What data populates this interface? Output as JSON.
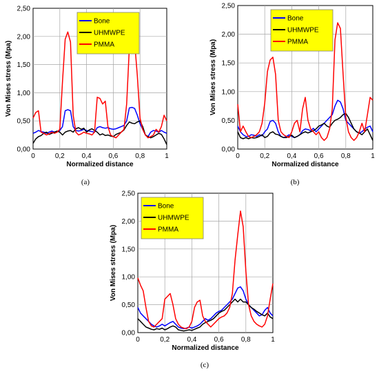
{
  "chart_data": [
    {
      "type": "line",
      "caption": "(a)",
      "xlabel": "Normalized distance",
      "ylabel": "Von Mises stress (Mpa)",
      "xlim": [
        0,
        1
      ],
      "ylim": [
        0,
        2.5
      ],
      "xticks": [
        0,
        0.2,
        0.4,
        0.6,
        0.8,
        1
      ],
      "xtick_labels": [
        "0",
        "0,2",
        "0,4",
        "0,6",
        "0,8",
        "1"
      ],
      "yticks": [
        0,
        0.5,
        1,
        1.5,
        2,
        2.5
      ],
      "ytick_labels": [
        "0,00",
        "0,50",
        "1,00",
        "1,50",
        "2,00",
        "2,50"
      ],
      "grid": true,
      "legend_position": "top-center",
      "series": [
        {
          "name": "Bone",
          "color": "#0000ff",
          "x": [
            0,
            0.02,
            0.04,
            0.06,
            0.08,
            0.1,
            0.12,
            0.14,
            0.16,
            0.18,
            0.2,
            0.22,
            0.24,
            0.26,
            0.28,
            0.3,
            0.32,
            0.34,
            0.36,
            0.38,
            0.4,
            0.42,
            0.44,
            0.46,
            0.48,
            0.5,
            0.52,
            0.54,
            0.56,
            0.58,
            0.6,
            0.62,
            0.64,
            0.66,
            0.68,
            0.7,
            0.72,
            0.74,
            0.76,
            0.78,
            0.8,
            0.82,
            0.84,
            0.86,
            0.88,
            0.9,
            0.92,
            0.94,
            0.96,
            0.98,
            1
          ],
          "y": [
            0.28,
            0.3,
            0.33,
            0.31,
            0.3,
            0.28,
            0.3,
            0.32,
            0.3,
            0.31,
            0.33,
            0.4,
            0.68,
            0.7,
            0.68,
            0.4,
            0.33,
            0.32,
            0.33,
            0.35,
            0.33,
            0.32,
            0.31,
            0.3,
            0.38,
            0.4,
            0.38,
            0.37,
            0.38,
            0.36,
            0.35,
            0.36,
            0.38,
            0.4,
            0.42,
            0.5,
            0.73,
            0.74,
            0.72,
            0.6,
            0.45,
            0.35,
            0.25,
            0.22,
            0.3,
            0.33,
            0.32,
            0.3,
            0.33,
            0.3,
            0.28
          ]
        },
        {
          "name": "UHMWPE",
          "color": "#000000",
          "x": [
            0,
            0.02,
            0.04,
            0.06,
            0.08,
            0.1,
            0.12,
            0.14,
            0.16,
            0.18,
            0.2,
            0.22,
            0.24,
            0.26,
            0.28,
            0.3,
            0.32,
            0.34,
            0.36,
            0.38,
            0.4,
            0.42,
            0.44,
            0.46,
            0.48,
            0.5,
            0.52,
            0.54,
            0.56,
            0.58,
            0.6,
            0.62,
            0.64,
            0.66,
            0.68,
            0.7,
            0.72,
            0.74,
            0.76,
            0.78,
            0.8,
            0.82,
            0.84,
            0.86,
            0.88,
            0.9,
            0.92,
            0.94,
            0.96,
            0.98,
            1
          ],
          "y": [
            0.1,
            0.18,
            0.22,
            0.24,
            0.28,
            0.3,
            0.26,
            0.28,
            0.3,
            0.32,
            0.3,
            0.25,
            0.3,
            0.32,
            0.33,
            0.3,
            0.36,
            0.38,
            0.35,
            0.37,
            0.3,
            0.34,
            0.36,
            0.33,
            0.3,
            0.25,
            0.27,
            0.24,
            0.25,
            0.23,
            0.22,
            0.26,
            0.28,
            0.3,
            0.34,
            0.42,
            0.48,
            0.46,
            0.45,
            0.48,
            0.5,
            0.4,
            0.25,
            0.22,
            0.2,
            0.22,
            0.25,
            0.28,
            0.26,
            0.18,
            0.08
          ]
        },
        {
          "name": "PMMA",
          "color": "#ff0000",
          "x": [
            0,
            0.02,
            0.04,
            0.06,
            0.08,
            0.1,
            0.12,
            0.14,
            0.16,
            0.18,
            0.2,
            0.22,
            0.24,
            0.26,
            0.28,
            0.3,
            0.32,
            0.34,
            0.36,
            0.38,
            0.4,
            0.42,
            0.44,
            0.46,
            0.48,
            0.5,
            0.52,
            0.54,
            0.56,
            0.58,
            0.6,
            0.62,
            0.64,
            0.66,
            0.68,
            0.7,
            0.72,
            0.74,
            0.76,
            0.78,
            0.8,
            0.82,
            0.84,
            0.86,
            0.88,
            0.9,
            0.92,
            0.94,
            0.96,
            0.98,
            1
          ],
          "y": [
            0.55,
            0.65,
            0.68,
            0.3,
            0.28,
            0.25,
            0.27,
            0.3,
            0.28,
            0.3,
            0.35,
            1.2,
            1.95,
            2.08,
            1.9,
            0.6,
            0.3,
            0.25,
            0.27,
            0.3,
            0.28,
            0.27,
            0.25,
            0.3,
            0.92,
            0.9,
            0.8,
            0.85,
            0.4,
            0.25,
            0.22,
            0.2,
            0.25,
            0.3,
            0.35,
            0.8,
            1.8,
            1.95,
            1.9,
            1.3,
            0.55,
            0.35,
            0.25,
            0.2,
            0.22,
            0.25,
            0.35,
            0.3,
            0.4,
            0.6,
            0.5
          ]
        }
      ]
    },
    {
      "type": "line",
      "caption": "(b)",
      "xlabel": "Normalized distance",
      "ylabel": "Von Mises stress (Mpa)",
      "xlim": [
        0,
        1
      ],
      "ylim": [
        0,
        2.5
      ],
      "xticks": [
        0,
        0.2,
        0.4,
        0.6,
        0.8,
        1
      ],
      "xtick_labels": [
        "0",
        "0,2",
        "0,4",
        "0,6",
        "0,8",
        "1"
      ],
      "yticks": [
        0,
        0.5,
        1,
        1.5,
        2,
        2.5
      ],
      "ytick_labels": [
        "0,00",
        "0,50",
        "1,00",
        "1,50",
        "2,00",
        "2,50"
      ],
      "grid": true,
      "legend_position": "top-center",
      "series": [
        {
          "name": "Bone",
          "color": "#0000ff",
          "x": [
            0,
            0.02,
            0.04,
            0.06,
            0.08,
            0.1,
            0.12,
            0.14,
            0.16,
            0.18,
            0.2,
            0.22,
            0.24,
            0.26,
            0.28,
            0.3,
            0.32,
            0.34,
            0.36,
            0.38,
            0.4,
            0.42,
            0.44,
            0.46,
            0.48,
            0.5,
            0.52,
            0.54,
            0.56,
            0.58,
            0.6,
            0.62,
            0.64,
            0.66,
            0.68,
            0.7,
            0.72,
            0.74,
            0.76,
            0.78,
            0.8,
            0.82,
            0.84,
            0.86,
            0.88,
            0.9,
            0.92,
            0.94,
            0.96,
            0.98,
            1
          ],
          "y": [
            0.4,
            0.3,
            0.25,
            0.22,
            0.22,
            0.25,
            0.24,
            0.22,
            0.25,
            0.23,
            0.3,
            0.35,
            0.48,
            0.5,
            0.45,
            0.3,
            0.22,
            0.2,
            0.22,
            0.25,
            0.22,
            0.2,
            0.22,
            0.25,
            0.32,
            0.35,
            0.34,
            0.32,
            0.36,
            0.3,
            0.35,
            0.4,
            0.45,
            0.5,
            0.55,
            0.6,
            0.75,
            0.85,
            0.82,
            0.7,
            0.5,
            0.45,
            0.4,
            0.35,
            0.3,
            0.28,
            0.3,
            0.35,
            0.38,
            0.4,
            0.3
          ]
        },
        {
          "name": "UHMWPE",
          "color": "#000000",
          "x": [
            0,
            0.02,
            0.04,
            0.06,
            0.08,
            0.1,
            0.12,
            0.14,
            0.16,
            0.18,
            0.2,
            0.22,
            0.24,
            0.26,
            0.28,
            0.3,
            0.32,
            0.34,
            0.36,
            0.38,
            0.4,
            0.42,
            0.44,
            0.46,
            0.48,
            0.5,
            0.52,
            0.54,
            0.56,
            0.58,
            0.6,
            0.62,
            0.64,
            0.66,
            0.68,
            0.7,
            0.72,
            0.74,
            0.76,
            0.78,
            0.8,
            0.82,
            0.84,
            0.86,
            0.88,
            0.9,
            0.92,
            0.94,
            0.96,
            0.98,
            1
          ],
          "y": [
            0.3,
            0.2,
            0.18,
            0.2,
            0.18,
            0.2,
            0.19,
            0.2,
            0.22,
            0.25,
            0.2,
            0.22,
            0.28,
            0.3,
            0.26,
            0.25,
            0.22,
            0.2,
            0.2,
            0.22,
            0.24,
            0.2,
            0.22,
            0.25,
            0.28,
            0.3,
            0.28,
            0.3,
            0.32,
            0.35,
            0.4,
            0.42,
            0.45,
            0.4,
            0.38,
            0.45,
            0.5,
            0.52,
            0.55,
            0.6,
            0.62,
            0.55,
            0.45,
            0.35,
            0.3,
            0.28,
            0.25,
            0.3,
            0.35,
            0.25,
            0.15
          ]
        },
        {
          "name": "PMMA",
          "color": "#ff0000",
          "x": [
            0,
            0.02,
            0.04,
            0.06,
            0.08,
            0.1,
            0.12,
            0.14,
            0.16,
            0.18,
            0.2,
            0.22,
            0.24,
            0.26,
            0.28,
            0.3,
            0.32,
            0.34,
            0.36,
            0.38,
            0.4,
            0.42,
            0.44,
            0.46,
            0.48,
            0.5,
            0.52,
            0.54,
            0.56,
            0.58,
            0.6,
            0.62,
            0.64,
            0.66,
            0.68,
            0.7,
            0.72,
            0.74,
            0.76,
            0.78,
            0.8,
            0.82,
            0.84,
            0.86,
            0.88,
            0.9,
            0.92,
            0.94,
            0.96,
            0.98,
            1
          ],
          "y": [
            0.78,
            0.3,
            0.4,
            0.3,
            0.22,
            0.2,
            0.22,
            0.25,
            0.3,
            0.45,
            0.8,
            1.35,
            1.55,
            1.6,
            1.3,
            0.5,
            0.3,
            0.25,
            0.22,
            0.2,
            0.3,
            0.45,
            0.5,
            0.3,
            0.7,
            0.9,
            0.5,
            0.35,
            0.3,
            0.25,
            0.3,
            0.2,
            0.15,
            0.2,
            0.35,
            0.7,
            1.9,
            2.2,
            2.1,
            1.3,
            0.55,
            0.3,
            0.2,
            0.15,
            0.2,
            0.3,
            0.45,
            0.3,
            0.6,
            0.9,
            0.85
          ]
        }
      ]
    },
    {
      "type": "line",
      "caption": "(c)",
      "xlabel": "Normalized distance",
      "ylabel": "Von Mises stress (Mpa)",
      "xlim": [
        0,
        1
      ],
      "ylim": [
        0,
        2.5
      ],
      "xticks": [
        0,
        0.2,
        0.4,
        0.6,
        0.8,
        1
      ],
      "xtick_labels": [
        "0",
        "0,2",
        "0,4",
        "0,6",
        "0,8",
        "1"
      ],
      "yticks": [
        0,
        0.5,
        1,
        1.5,
        2,
        2.5
      ],
      "ytick_labels": [
        "0,00",
        "0,50",
        "1,00",
        "1,50",
        "2,00",
        "2,50"
      ],
      "grid": true,
      "legend_position": "top-left",
      "series": [
        {
          "name": "Bone",
          "color": "#0000ff",
          "x": [
            0,
            0.02,
            0.04,
            0.06,
            0.08,
            0.1,
            0.12,
            0.14,
            0.16,
            0.18,
            0.2,
            0.22,
            0.24,
            0.26,
            0.28,
            0.3,
            0.32,
            0.34,
            0.36,
            0.38,
            0.4,
            0.42,
            0.44,
            0.46,
            0.48,
            0.5,
            0.52,
            0.54,
            0.56,
            0.58,
            0.6,
            0.62,
            0.64,
            0.66,
            0.68,
            0.7,
            0.72,
            0.74,
            0.76,
            0.78,
            0.8,
            0.82,
            0.84,
            0.86,
            0.88,
            0.9,
            0.92,
            0.94,
            0.96,
            0.98,
            1
          ],
          "y": [
            0.45,
            0.35,
            0.3,
            0.25,
            0.2,
            0.15,
            0.12,
            0.1,
            0.12,
            0.15,
            0.12,
            0.15,
            0.18,
            0.2,
            0.15,
            0.1,
            0.08,
            0.07,
            0.08,
            0.1,
            0.08,
            0.1,
            0.12,
            0.15,
            0.2,
            0.25,
            0.22,
            0.25,
            0.3,
            0.35,
            0.38,
            0.4,
            0.45,
            0.5,
            0.55,
            0.6,
            0.7,
            0.8,
            0.82,
            0.75,
            0.6,
            0.5,
            0.45,
            0.4,
            0.35,
            0.3,
            0.32,
            0.4,
            0.45,
            0.35,
            0.3
          ]
        },
        {
          "name": "UHMWPE",
          "color": "#000000",
          "x": [
            0,
            0.02,
            0.04,
            0.06,
            0.08,
            0.1,
            0.12,
            0.14,
            0.16,
            0.18,
            0.2,
            0.22,
            0.24,
            0.26,
            0.28,
            0.3,
            0.32,
            0.34,
            0.36,
            0.38,
            0.4,
            0.42,
            0.44,
            0.46,
            0.48,
            0.5,
            0.52,
            0.54,
            0.56,
            0.58,
            0.6,
            0.62,
            0.64,
            0.66,
            0.68,
            0.7,
            0.72,
            0.74,
            0.76,
            0.78,
            0.8,
            0.82,
            0.84,
            0.86,
            0.88,
            0.9,
            0.92,
            0.94,
            0.96,
            0.98,
            1
          ],
          "y": [
            0.25,
            0.2,
            0.15,
            0.1,
            0.08,
            0.06,
            0.05,
            0.07,
            0.06,
            0.08,
            0.05,
            0.07,
            0.1,
            0.12,
            0.1,
            0.05,
            0.04,
            0.03,
            0.04,
            0.05,
            0.04,
            0.06,
            0.08,
            0.1,
            0.15,
            0.18,
            0.2,
            0.22,
            0.25,
            0.3,
            0.35,
            0.38,
            0.4,
            0.45,
            0.5,
            0.55,
            0.6,
            0.55,
            0.6,
            0.55,
            0.55,
            0.5,
            0.45,
            0.42,
            0.38,
            0.35,
            0.32,
            0.3,
            0.35,
            0.28,
            0.25
          ]
        },
        {
          "name": "PMMA",
          "color": "#ff0000",
          "x": [
            0,
            0.02,
            0.04,
            0.06,
            0.08,
            0.1,
            0.12,
            0.14,
            0.16,
            0.18,
            0.2,
            0.22,
            0.24,
            0.26,
            0.28,
            0.3,
            0.32,
            0.34,
            0.36,
            0.38,
            0.4,
            0.42,
            0.44,
            0.46,
            0.48,
            0.5,
            0.52,
            0.54,
            0.56,
            0.58,
            0.6,
            0.62,
            0.64,
            0.66,
            0.68,
            0.7,
            0.72,
            0.74,
            0.76,
            0.78,
            0.8,
            0.82,
            0.84,
            0.86,
            0.88,
            0.9,
            0.92,
            0.94,
            0.96,
            0.98,
            1
          ],
          "y": [
            0.98,
            0.85,
            0.75,
            0.45,
            0.2,
            0.12,
            0.1,
            0.15,
            0.2,
            0.25,
            0.6,
            0.65,
            0.7,
            0.5,
            0.25,
            0.15,
            0.1,
            0.08,
            0.07,
            0.1,
            0.2,
            0.45,
            0.55,
            0.58,
            0.3,
            0.2,
            0.15,
            0.1,
            0.15,
            0.2,
            0.25,
            0.28,
            0.3,
            0.35,
            0.45,
            0.7,
            1.3,
            1.75,
            2.18,
            1.9,
            1.1,
            0.5,
            0.3,
            0.2,
            0.15,
            0.12,
            0.1,
            0.15,
            0.3,
            0.6,
            0.88
          ]
        }
      ]
    }
  ]
}
